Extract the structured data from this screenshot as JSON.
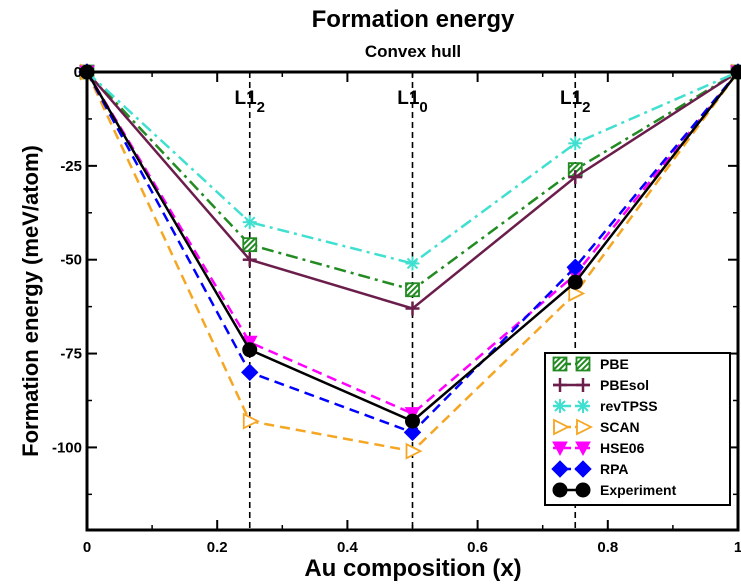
{
  "chart_data": {
    "type": "line",
    "title": "Formation energy",
    "subtitle": "Convex hull",
    "xlabel": "Au composition (x)",
    "ylabel": "Formation energy (meV/atom)",
    "xlim": [
      0,
      1
    ],
    "ylim": [
      -122,
      0
    ],
    "xticks": [
      0,
      0.2,
      0.4,
      0.6,
      0.8,
      1
    ],
    "xtick_labels": [
      "0",
      "0.2",
      "0.4",
      "0.6",
      "0.8",
      "1"
    ],
    "yticks": [
      0,
      -25,
      -50,
      -75,
      -100
    ],
    "ytick_labels": [
      "0",
      "-25",
      "-50",
      "-75",
      "-100"
    ],
    "grid": false,
    "legend_position": "bottom-right",
    "phase_lines": [
      {
        "x": 0.25,
        "label_main": "L1",
        "label_sub": "2"
      },
      {
        "x": 0.5,
        "label_main": "L1",
        "label_sub": "0"
      },
      {
        "x": 0.75,
        "label_main": "L1",
        "label_sub": "2"
      }
    ],
    "x": [
      0,
      0.25,
      0.5,
      0.75,
      1
    ],
    "series": [
      {
        "name": "PBE",
        "values": [
          0,
          -46,
          -58,
          -26,
          0
        ],
        "color": "#228b22",
        "dash": "dashdot",
        "marker": "square-hatched"
      },
      {
        "name": "PBEsol",
        "values": [
          0,
          -50,
          -63,
          -28,
          0
        ],
        "color": "#6b1e4b",
        "dash": "solid",
        "marker": "plus"
      },
      {
        "name": "revTPSS",
        "values": [
          0,
          -40,
          -51,
          -19,
          0
        ],
        "color": "#40e0d0",
        "dash": "dashdot",
        "marker": "star"
      },
      {
        "name": "SCAN",
        "values": [
          0,
          -93,
          -101,
          -59,
          0
        ],
        "color": "#f5a623",
        "dash": "dashed",
        "marker": "triangle-right"
      },
      {
        "name": "HSE06",
        "values": [
          0,
          -72,
          -91,
          -54,
          0
        ],
        "color": "#ff00ff",
        "dash": "dashed",
        "marker": "triangle-down"
      },
      {
        "name": "RPA",
        "values": [
          0,
          -80,
          -96,
          -52,
          0
        ],
        "color": "#0000ff",
        "dash": "dashed",
        "marker": "diamond"
      },
      {
        "name": "Experiment",
        "values": [
          0,
          -74,
          -93,
          -56,
          0
        ],
        "color": "#000000",
        "dash": "solid",
        "marker": "circle"
      }
    ]
  }
}
